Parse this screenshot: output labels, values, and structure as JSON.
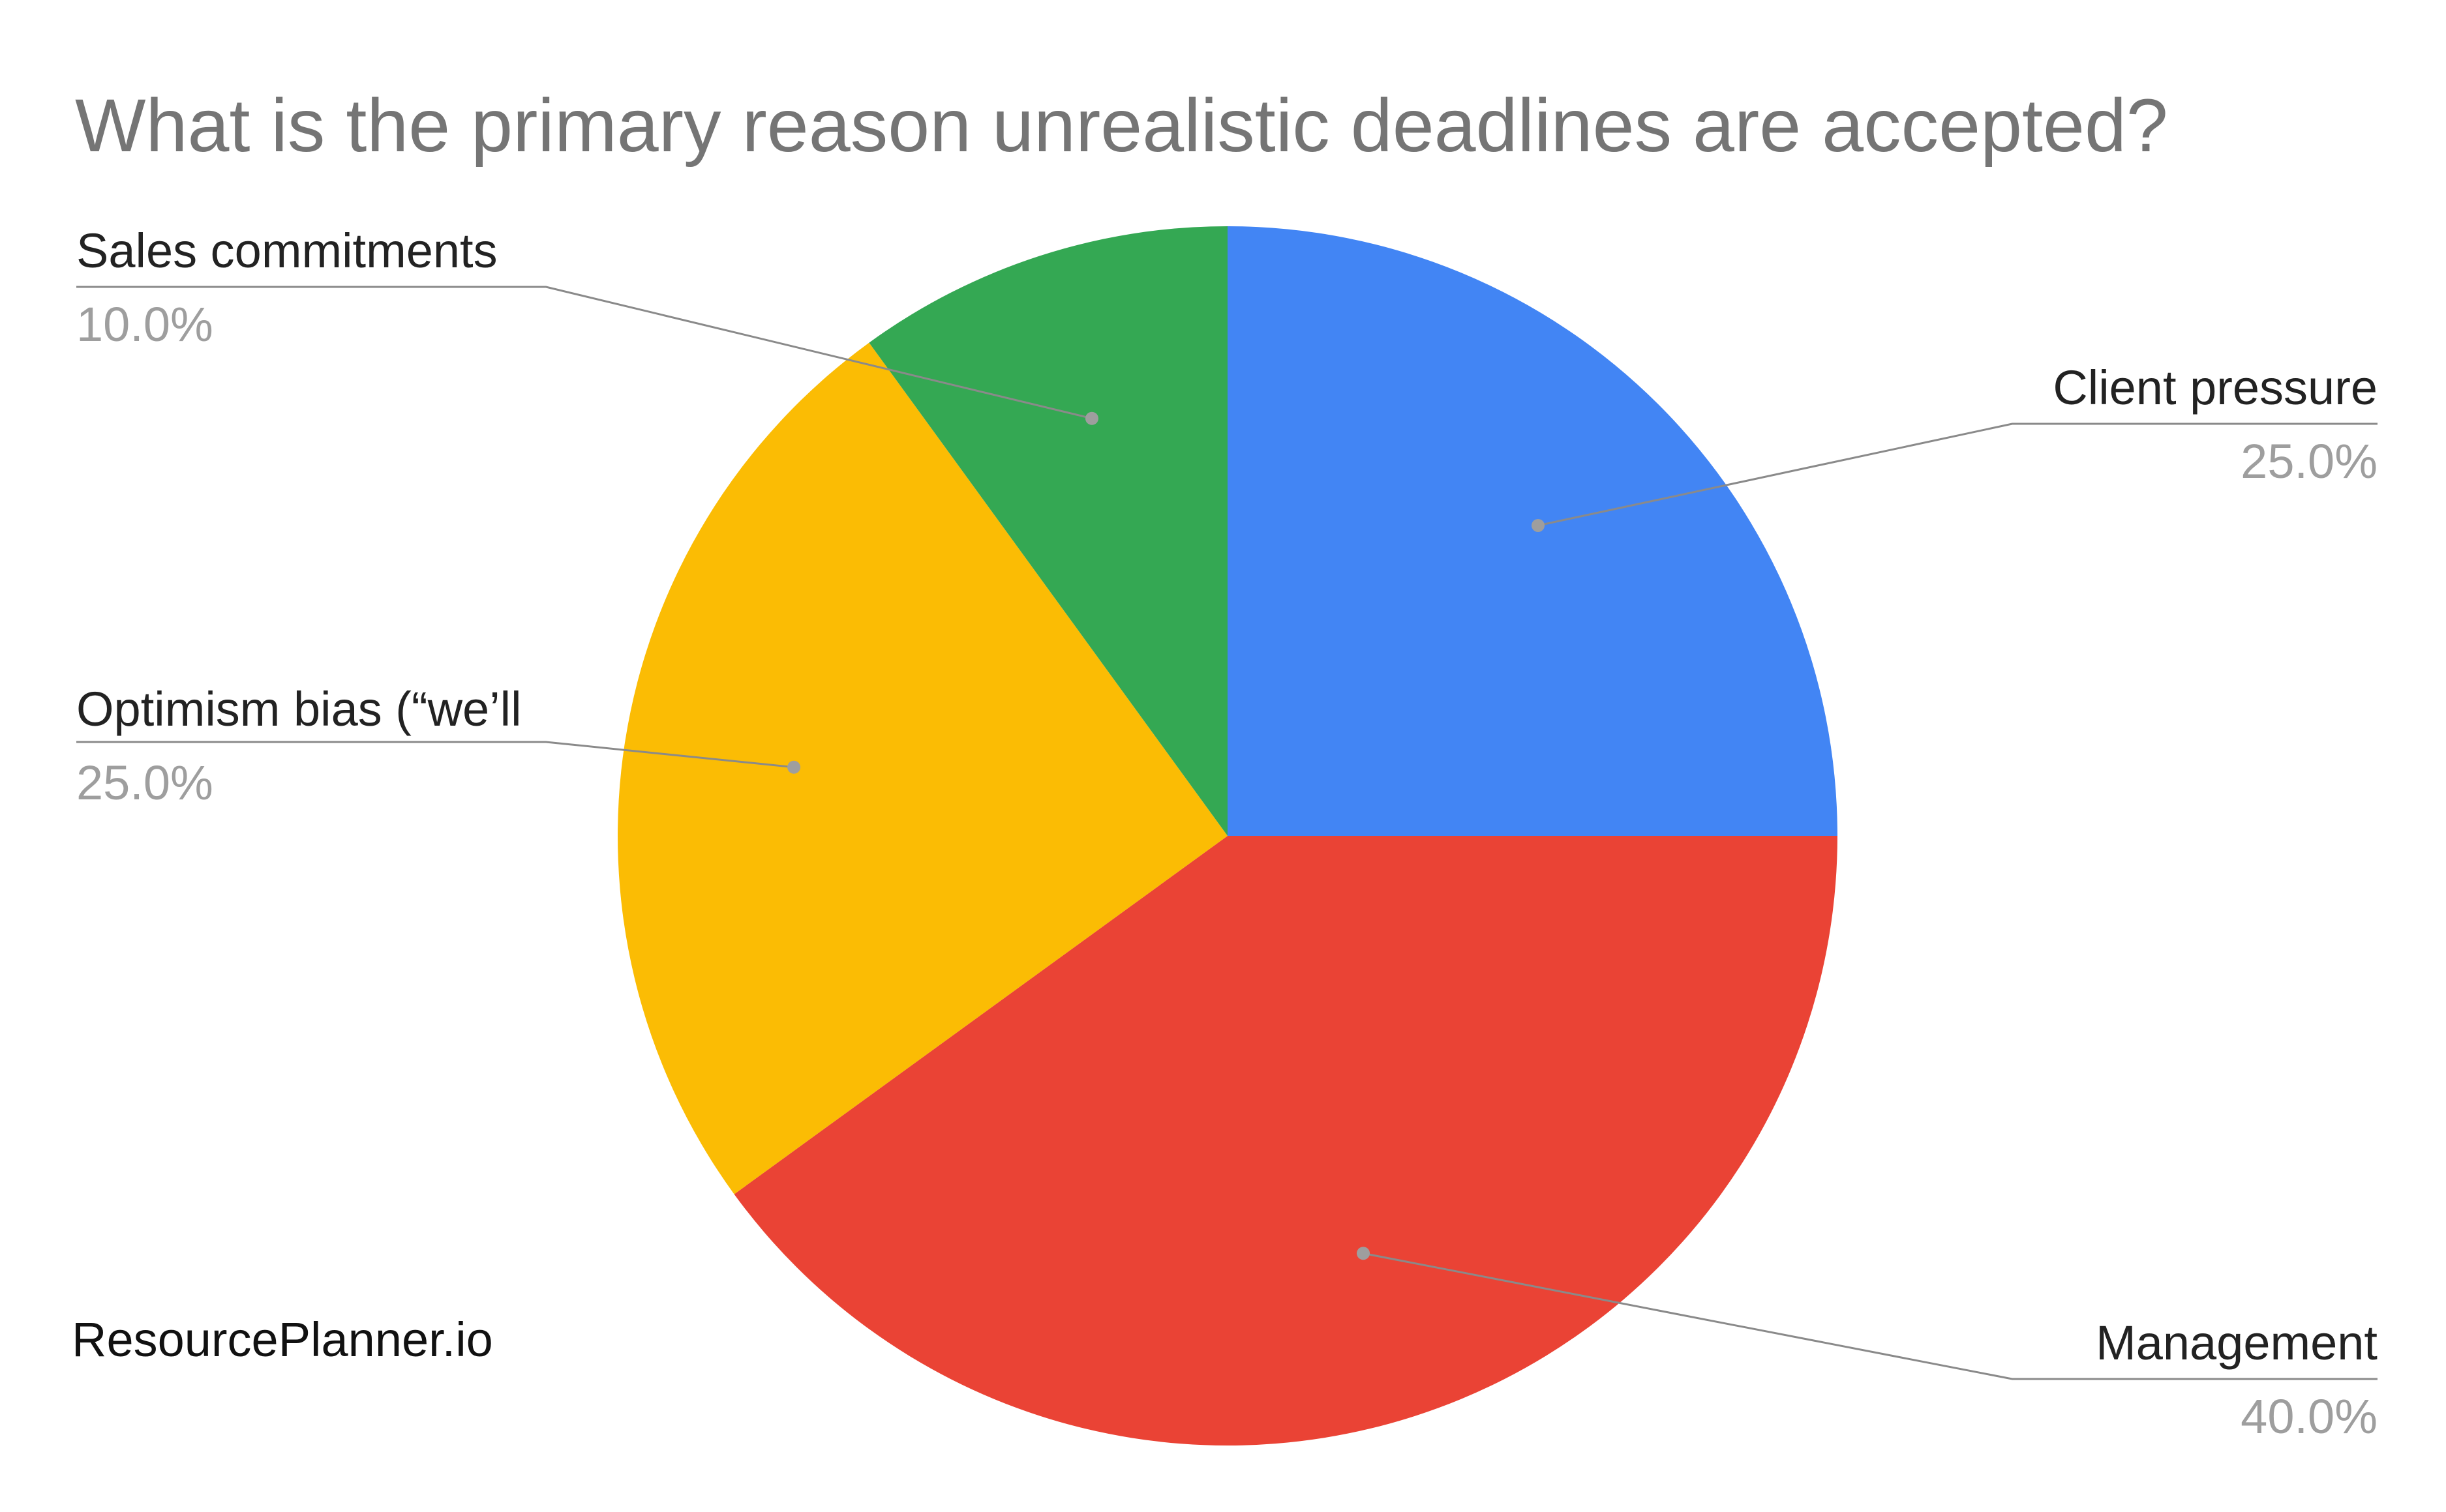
{
  "chart_data": {
    "type": "pie",
    "title": "What is the primary reason unrealistic deadlines are accepted?",
    "categories": [
      "Client pressure",
      "Management",
      "Optimism bias (“we’ll",
      "Sales commitments"
    ],
    "values": [
      25.0,
      40.0,
      25.0,
      10.0
    ],
    "value_labels": [
      "25.0%",
      "40.0%",
      "25.0%",
      "10.0%"
    ],
    "colors": [
      "#4285f4",
      "#ea4335",
      "#fbbc04",
      "#34a853"
    ],
    "start": "12 o'clock, clockwise",
    "legend": "none (leader-line labels)"
  },
  "watermark": "ResourcePlanner.io"
}
